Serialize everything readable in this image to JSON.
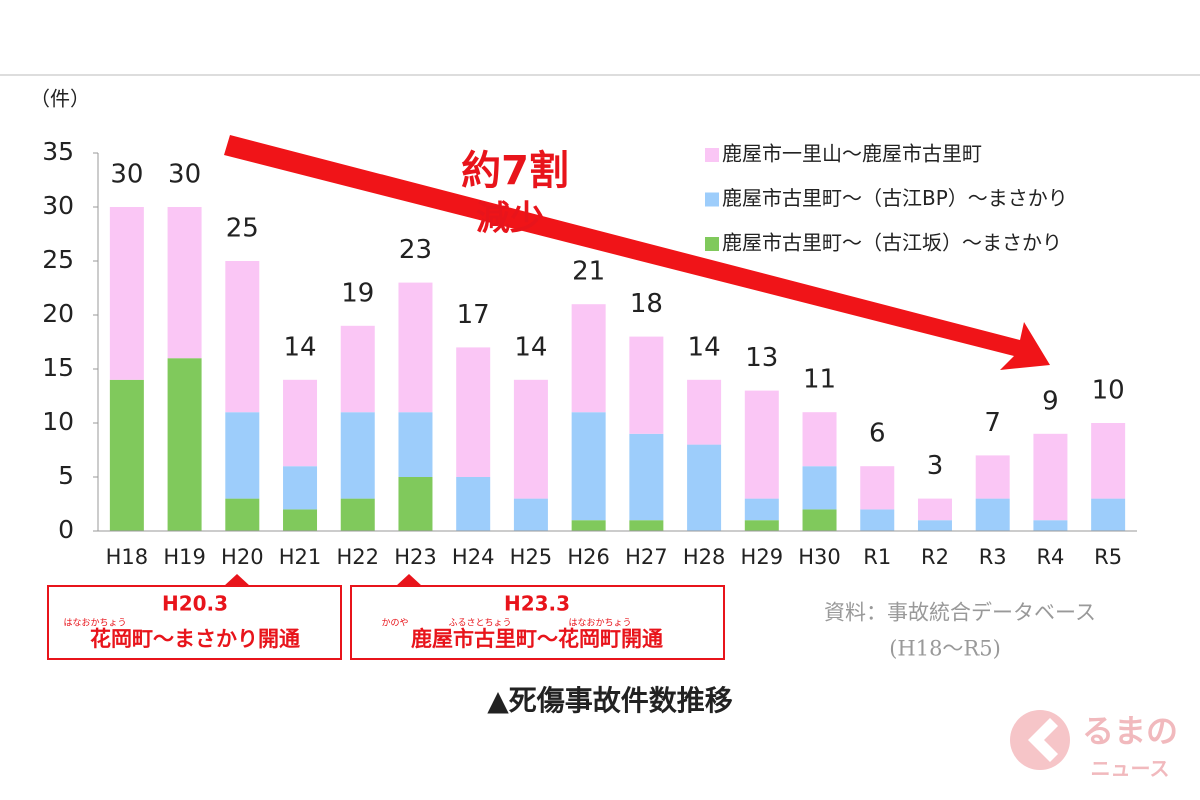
{
  "chart_data": {
    "type": "stacked_bar",
    "y_label": "（件）",
    "categories": [
      "H18",
      "H19",
      "H20",
      "H21",
      "H22",
      "H23",
      "H24",
      "H25",
      "H26",
      "H27",
      "H28",
      "H29",
      "H30",
      "R1",
      "R2",
      "R3",
      "R4",
      "R5"
    ],
    "series": [
      {
        "name": "鹿屋市一里山～鹿屋市古里町",
        "color": "#fac6f5",
        "values": [
          16,
          14,
          14,
          8,
          8,
          12,
          12,
          11,
          10,
          9,
          6,
          10,
          5,
          4,
          2,
          4,
          8,
          7
        ]
      },
      {
        "name": "鹿屋市古里町～（古江BP）～まさかり",
        "color": "#9dcdfb",
        "values": [
          0,
          0,
          8,
          4,
          8,
          6,
          5,
          3,
          10,
          8,
          8,
          2,
          4,
          2,
          1,
          3,
          1,
          3
        ]
      },
      {
        "name": "鹿屋市古里町～（古江坂）～まさかり",
        "color": "#80c95c",
        "values": [
          14,
          16,
          3,
          2,
          3,
          5,
          0,
          0,
          1,
          1,
          0,
          1,
          2,
          0,
          0,
          0,
          0,
          0
        ]
      }
    ],
    "totals": [
      30,
      30,
      25,
      14,
      19,
      23,
      17,
      14,
      21,
      18,
      14,
      13,
      11,
      6,
      3,
      7,
      9,
      10
    ],
    "ylim": [
      0,
      35
    ],
    "yticks": [
      0,
      5,
      10,
      15,
      20,
      25,
      30,
      35
    ],
    "annotation": {
      "line1": "約7割",
      "line2": "減少"
    },
    "events": [
      {
        "date": "H20.3",
        "ruby": "はなおかちょう",
        "text": "花岡町～まさかり開通"
      },
      {
        "date": "H23.3",
        "ruby1": "かのや",
        "ruby2": "ふるさとちょう",
        "ruby3": "はなおかちょう",
        "text": "鹿屋市古里町～花岡町開通"
      }
    ],
    "source": "資料：事故統合データベース",
    "source_period": "(H18～R5)",
    "caption": "▲死傷事故件数推移",
    "logo": {
      "main": "るまの",
      "sub": "ニュース"
    }
  }
}
